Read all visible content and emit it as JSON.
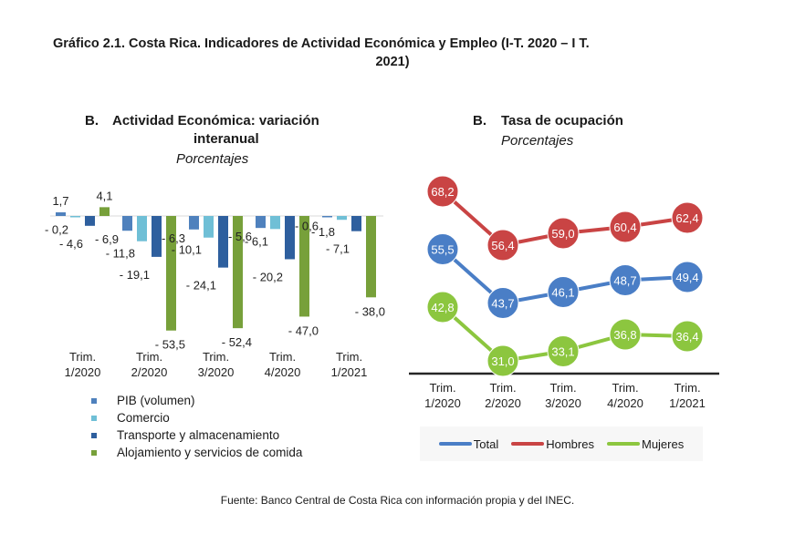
{
  "title": "Gráfico 2.1. Costa Rica. Indicadores de Actividad Económica y Empleo (I-T. 2020 – I T. 2021)",
  "title_line1": "Gráfico 2.1. Costa Rica. Indicadores de Actividad Económica y Empleo (I-T. 2020 – I T.",
  "title_line2": "2021)",
  "source": "Fuente: Banco Central de Costa Rica con información propia y del INEC.",
  "chart_data": [
    {
      "type": "bar",
      "panel_letter": "B.",
      "title_line1": "Actividad Económica: variación",
      "title_line2": "interanual",
      "subtitle": "Porcentajes",
      "categories": [
        [
          "Trim.",
          "1/2020"
        ],
        [
          "Trim.",
          "2/2020"
        ],
        [
          "Trim.",
          "3/2020"
        ],
        [
          "Trim.",
          "4/2020"
        ],
        [
          "Trim.",
          "1/2021"
        ]
      ],
      "series": [
        {
          "name": "PIB (volumen)",
          "color": "#4f81bd",
          "values": [
            1.7,
            -6.9,
            -6.3,
            -5.6,
            -0.6
          ],
          "labels": [
            "1,7",
            "- 6,9",
            "- 6,3",
            "- 5,6",
            "- 0,6"
          ]
        },
        {
          "name": "Comercio",
          "color": "#6fbfd6",
          "values": [
            -0.2,
            -11.8,
            -10.1,
            -6.1,
            -1.8
          ],
          "labels": [
            "- 0,2",
            "- 11,8",
            "- 10,1",
            "- 6,1",
            "- 1,8"
          ]
        },
        {
          "name": "Transporte y almacenamiento",
          "color": "#2e5f9e",
          "values": [
            -4.6,
            -19.1,
            -24.1,
            -20.2,
            -7.1
          ],
          "labels": [
            "- 4,6",
            "- 19,1",
            "- 24,1",
            "- 20,2",
            "- 7,1"
          ]
        },
        {
          "name": "Alojamiento y servicios de comida",
          "color": "#77a03a",
          "values": [
            4.1,
            -53.5,
            -52.4,
            -47.0,
            -38.0
          ],
          "labels": [
            "4,1",
            "- 53,5",
            "- 52,4",
            "- 47,0",
            "- 38,0"
          ]
        }
      ],
      "ylim": [
        -60,
        5
      ],
      "grid": false,
      "legend_position": "bottom-left"
    },
    {
      "type": "line",
      "panel_letter": "B.",
      "title_line1": "Tasa de ocupación",
      "subtitle": "Porcentajes",
      "categories": [
        [
          "Trim.",
          "1/2020"
        ],
        [
          "Trim.",
          "2/2020"
        ],
        [
          "Trim.",
          "3/2020"
        ],
        [
          "Trim.",
          "4/2020"
        ],
        [
          "Trim.",
          "1/2021"
        ]
      ],
      "series": [
        {
          "name": "Total",
          "color": "#4a7ec6",
          "values": [
            55.5,
            43.7,
            46.1,
            48.7,
            49.4
          ],
          "labels": [
            "55,5",
            "43,7",
            "46,1",
            "48,7",
            "49,4"
          ]
        },
        {
          "name": "Hombres",
          "color": "#c94444",
          "values": [
            68.2,
            56.4,
            59.0,
            60.4,
            62.4
          ],
          "labels": [
            "68,2",
            "56,4",
            "59,0",
            "60,4",
            "62,4"
          ]
        },
        {
          "name": "Mujeres",
          "color": "#8cc63f",
          "values": [
            42.8,
            31.0,
            33.1,
            36.8,
            36.4
          ],
          "labels": [
            "42,8",
            "31,0",
            "33,1",
            "36,8",
            "36,4"
          ]
        }
      ],
      "ylim": [
        28,
        72
      ],
      "grid": false,
      "legend_position": "bottom"
    }
  ]
}
